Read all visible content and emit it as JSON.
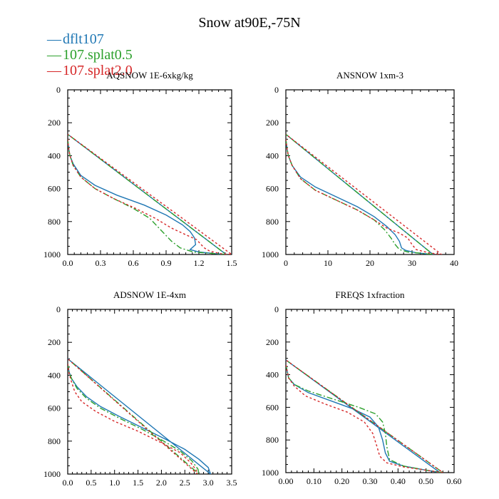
{
  "figure": {
    "title": "Snow at90E,-75N",
    "legend": [
      {
        "label": "dflt107",
        "color": "#1f77b4"
      },
      {
        "label": "107.splat0.5",
        "color": "#2ca02c"
      },
      {
        "label": "107.splat2.0",
        "color": "#d62728"
      }
    ]
  },
  "chart_data": [
    {
      "type": "line",
      "title": "AQSNOW  1E-6xkg/kg",
      "xlim": [
        0,
        1.5
      ],
      "ylim": [
        1000,
        0
      ],
      "xticks": [
        "0.0",
        "0.3",
        "0.6",
        "0.9",
        "1.2",
        "1.5"
      ],
      "yticks": [
        "0",
        "200",
        "400",
        "600",
        "800",
        "1000"
      ],
      "series": [
        {
          "name": "dflt107",
          "color": "#1f77b4",
          "dash": "",
          "x": [
            0,
            0.01,
            0.02,
            0.05,
            0.12,
            0.25,
            0.45,
            0.7,
            0.9,
            1.05,
            1.12,
            1.16,
            1.17,
            1.12,
            1.2,
            1.35,
            1.45
          ],
          "y": [
            300,
            360,
            400,
            450,
            520,
            580,
            640,
            700,
            760,
            820,
            860,
            900,
            940,
            970,
            985,
            995,
            1000
          ]
        },
        {
          "name": "107.splat0.5",
          "color": "#2ca02c",
          "dash": "8,3,2,3",
          "x": [
            0,
            0.01,
            0.02,
            0.05,
            0.12,
            0.25,
            0.42,
            0.6,
            0.75,
            0.85,
            0.95,
            1.03,
            1.1,
            1.15,
            1.35,
            1.45
          ],
          "y": [
            300,
            360,
            400,
            460,
            530,
            600,
            660,
            720,
            780,
            850,
            920,
            960,
            975,
            985,
            995,
            1000
          ]
        },
        {
          "name": "107.splat2.0",
          "color": "#d62728",
          "dash": "3,3",
          "x": [
            0,
            0.01,
            0.02,
            0.05,
            0.12,
            0.25,
            0.42,
            0.62,
            0.8,
            0.95,
            1.08,
            1.18,
            1.22,
            1.25,
            1.3,
            1.4,
            1.5
          ],
          "y": [
            300,
            360,
            400,
            460,
            530,
            600,
            660,
            720,
            780,
            840,
            880,
            910,
            940,
            960,
            980,
            995,
            1000
          ]
        }
      ]
    },
    {
      "type": "line",
      "title": "ANSNOW  1xm-3",
      "xlim": [
        0,
        40
      ],
      "ylim": [
        1000,
        0
      ],
      "xticks": [
        "0",
        "10",
        "20",
        "30",
        "40"
      ],
      "yticks": [
        "0",
        "200",
        "400",
        "600",
        "800",
        "1000"
      ],
      "series": [
        {
          "name": "dflt107",
          "color": "#1f77b4",
          "dash": "",
          "x": [
            0,
            0.3,
            0.6,
            1.5,
            3.5,
            7,
            12,
            17,
            21,
            24,
            26,
            27,
            27.5,
            28.5,
            31,
            35
          ],
          "y": [
            300,
            360,
            400,
            460,
            530,
            590,
            650,
            710,
            770,
            830,
            880,
            920,
            960,
            975,
            990,
            1000
          ]
        },
        {
          "name": "107.splat0.5",
          "color": "#2ca02c",
          "dash": "8,3,2,3",
          "x": [
            0,
            0.3,
            0.6,
            1.5,
            3.5,
            7,
            12,
            17,
            21,
            23.5,
            25,
            26,
            27,
            29,
            33,
            35
          ],
          "y": [
            300,
            360,
            400,
            460,
            540,
            610,
            670,
            730,
            790,
            850,
            900,
            940,
            970,
            985,
            995,
            1000
          ]
        },
        {
          "name": "107.splat2.0",
          "color": "#d62728",
          "dash": "3,3",
          "x": [
            0,
            0.3,
            0.6,
            1.5,
            3.5,
            7,
            12,
            17,
            21,
            24,
            27,
            29,
            30,
            31,
            34,
            37
          ],
          "y": [
            300,
            360,
            400,
            460,
            540,
            610,
            670,
            730,
            790,
            840,
            870,
            900,
            940,
            970,
            990,
            1000
          ]
        }
      ]
    },
    {
      "type": "line",
      "title": "ADSNOW  1E-4xm",
      "xlim": [
        0,
        3.5
      ],
      "ylim": [
        1000,
        0
      ],
      "xticks": [
        "0.0",
        "0.5",
        "1.0",
        "1.5",
        "2.0",
        "2.5",
        "3.0",
        "3.5"
      ],
      "yticks": [
        "0",
        "200",
        "400",
        "600",
        "800",
        "1000"
      ],
      "series": [
        {
          "name": "dflt107",
          "color": "#1f77b4",
          "dash": "",
          "x": [
            0,
            0.03,
            0.08,
            0.2,
            0.4,
            0.7,
            1.1,
            1.6,
            2.1,
            2.5,
            2.8,
            3.0,
            3.05
          ],
          "y": [
            330,
            380,
            420,
            470,
            530,
            590,
            650,
            720,
            790,
            850,
            910,
            960,
            1000
          ]
        },
        {
          "name": "107.splat0.5",
          "color": "#2ca02c",
          "dash": "8,3,2,3",
          "x": [
            0,
            0.03,
            0.08,
            0.2,
            0.4,
            0.7,
            1.1,
            1.6,
            2.05,
            2.4,
            2.65,
            2.78,
            2.8
          ],
          "y": [
            330,
            380,
            420,
            480,
            540,
            600,
            660,
            730,
            800,
            860,
            920,
            970,
            1000
          ]
        },
        {
          "name": "107.splat2.0",
          "color": "#d62728",
          "dash": "3,3",
          "x": [
            0,
            0.03,
            0.08,
            0.15,
            0.3,
            0.6,
            1.0,
            1.5,
            2.0,
            2.4,
            2.62,
            2.74,
            2.77
          ],
          "y": [
            330,
            390,
            440,
            500,
            560,
            620,
            680,
            740,
            810,
            870,
            930,
            975,
            1000
          ]
        }
      ]
    },
    {
      "type": "line",
      "title": "FREQS  1xfraction",
      "xlim": [
        0,
        0.6
      ],
      "ylim": [
        1000,
        0
      ],
      "xticks": [
        "0.00",
        "0.10",
        "0.20",
        "0.30",
        "0.40",
        "0.50",
        "0.60"
      ],
      "yticks": [
        "0",
        "200",
        "400",
        "600",
        "800",
        "1000"
      ],
      "series": [
        {
          "name": "dflt107",
          "color": "#1f77b4",
          "dash": "",
          "x": [
            0,
            0.005,
            0.01,
            0.03,
            0.08,
            0.16,
            0.24,
            0.3,
            0.33,
            0.345,
            0.355,
            0.37,
            0.42,
            0.5,
            0.55
          ],
          "y": [
            340,
            380,
            420,
            460,
            510,
            560,
            610,
            660,
            720,
            800,
            880,
            930,
            960,
            985,
            1000
          ]
        },
        {
          "name": "107.splat0.5",
          "color": "#2ca02c",
          "dash": "8,3,2,3",
          "x": [
            0,
            0.005,
            0.01,
            0.03,
            0.08,
            0.17,
            0.26,
            0.32,
            0.345,
            0.355,
            0.36,
            0.37,
            0.42,
            0.5,
            0.56
          ],
          "y": [
            340,
            380,
            420,
            460,
            500,
            550,
            600,
            640,
            690,
            760,
            840,
            920,
            960,
            985,
            1000
          ]
        },
        {
          "name": "107.splat2.0",
          "color": "#d62728",
          "dash": "3,3",
          "x": [
            0,
            0.005,
            0.01,
            0.03,
            0.07,
            0.14,
            0.22,
            0.28,
            0.31,
            0.325,
            0.335,
            0.36,
            0.42,
            0.5,
            0.56
          ],
          "y": [
            340,
            380,
            420,
            470,
            530,
            580,
            630,
            690,
            760,
            840,
            900,
            940,
            965,
            985,
            1000
          ]
        }
      ]
    }
  ]
}
